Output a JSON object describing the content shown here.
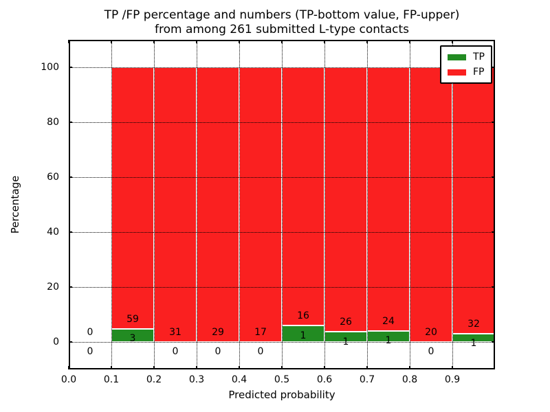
{
  "chart_data": {
    "type": "bar",
    "stacked": true,
    "normalized": "percent",
    "title_lines": [
      "TP /FP percentage and numbers (TP-bottom value, FP-upper)",
      "from among 261 submitted L-type contacts"
    ],
    "xlabel": "Predicted probability",
    "ylabel": "Percentage",
    "xlim": [
      0.0,
      1.0
    ],
    "ylim": [
      -10,
      110
    ],
    "x_ticks": [
      "0.0",
      "0.1",
      "0.2",
      "0.3",
      "0.4",
      "0.5",
      "0.6",
      "0.7",
      "0.8",
      "0.9"
    ],
    "y_ticks": [
      "0",
      "20",
      "40",
      "60",
      "80",
      "100"
    ],
    "grid": "dotted, drawn above bars",
    "total_contacts": 261,
    "series": [
      {
        "name": "TP",
        "color": "#228b22",
        "position": "bottom"
      },
      {
        "name": "FP",
        "color": "#fa2020",
        "position": "upper"
      }
    ],
    "bins": [
      {
        "label": "0.0-0.1",
        "x_start": 0.0,
        "x_end": 0.1,
        "tp": 0,
        "fp": 0,
        "tp_pct": 0,
        "fp_pct": 0
      },
      {
        "label": "0.1-0.2",
        "x_start": 0.1,
        "x_end": 0.2,
        "tp": 3,
        "fp": 59,
        "tp_pct": 4.84,
        "fp_pct": 95.16
      },
      {
        "label": "0.2-0.3",
        "x_start": 0.2,
        "x_end": 0.3,
        "tp": 0,
        "fp": 31,
        "tp_pct": 0,
        "fp_pct": 100
      },
      {
        "label": "0.3-0.4",
        "x_start": 0.3,
        "x_end": 0.4,
        "tp": 0,
        "fp": 29,
        "tp_pct": 0,
        "fp_pct": 100
      },
      {
        "label": "0.4-0.5",
        "x_start": 0.4,
        "x_end": 0.5,
        "tp": 0,
        "fp": 17,
        "tp_pct": 0,
        "fp_pct": 100
      },
      {
        "label": "0.5-0.6",
        "x_start": 0.5,
        "x_end": 0.6,
        "tp": 1,
        "fp": 16,
        "tp_pct": 5.88,
        "fp_pct": 94.12
      },
      {
        "label": "0.6-0.7",
        "x_start": 0.6,
        "x_end": 0.7,
        "tp": 1,
        "fp": 26,
        "tp_pct": 3.7,
        "fp_pct": 96.3
      },
      {
        "label": "0.7-0.8",
        "x_start": 0.7,
        "x_end": 0.8,
        "tp": 1,
        "fp": 24,
        "tp_pct": 4.0,
        "fp_pct": 96.0
      },
      {
        "label": "0.8-0.9",
        "x_start": 0.8,
        "x_end": 0.9,
        "tp": 0,
        "fp": 20,
        "tp_pct": 0,
        "fp_pct": 100
      },
      {
        "label": "0.9-1.0",
        "x_start": 0.9,
        "x_end": 1.0,
        "tp": 1,
        "fp": 32,
        "tp_pct": 3.03,
        "fp_pct": 96.97
      }
    ],
    "legend": {
      "position": "upper right",
      "entries": [
        {
          "label": "TP",
          "color": "#228b22"
        },
        {
          "label": "FP",
          "color": "#fa2020"
        }
      ]
    }
  },
  "colors": {
    "tp": "#228b22",
    "fp": "#fa2020",
    "bar_edge": "#ffffff",
    "grid": "#000000",
    "axis": "#000000",
    "background": "#ffffff"
  }
}
